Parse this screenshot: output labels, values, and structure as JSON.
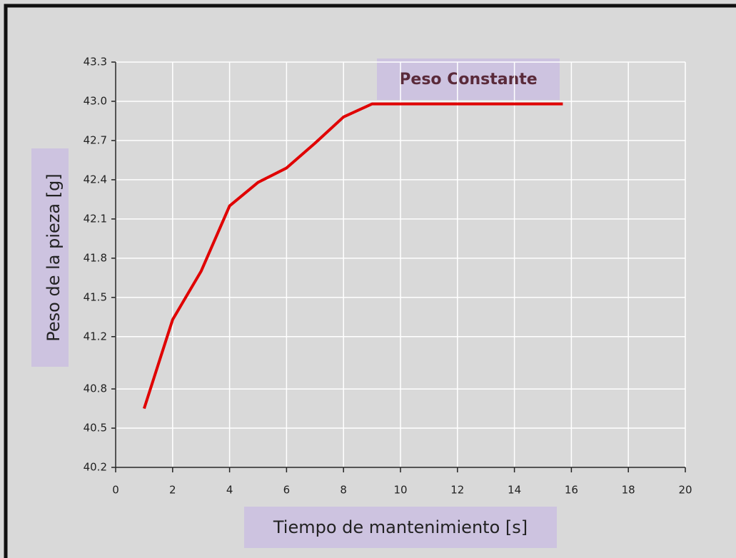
{
  "chart_data": {
    "type": "line",
    "ylabel": "Peso de la pieza [g]",
    "xlabel": "Tiempo de mantenimiento [s]",
    "annotation": "Peso Constante",
    "series": [
      {
        "name": "Peso",
        "color": "#e00000",
        "x": [
          1,
          2,
          3,
          4,
          5,
          6,
          7,
          8,
          9,
          15.7
        ],
        "values": [
          40.65,
          41.33,
          41.7,
          42.2,
          42.38,
          42.49,
          42.68,
          42.88,
          42.98,
          42.98
        ]
      }
    ],
    "xlim": [
      0,
      20
    ],
    "xticks": [
      0,
      2,
      4,
      6,
      8,
      10,
      12,
      14,
      16,
      18,
      20
    ],
    "ylim": [
      40.2,
      43.3
    ],
    "yticks": [
      40.2,
      40.5,
      40.8,
      41.2,
      41.5,
      41.8,
      42.1,
      42.4,
      42.7,
      {
        "value": 43,
        "label": "43.0"
      },
      43.3
    ],
    "grid": true
  }
}
